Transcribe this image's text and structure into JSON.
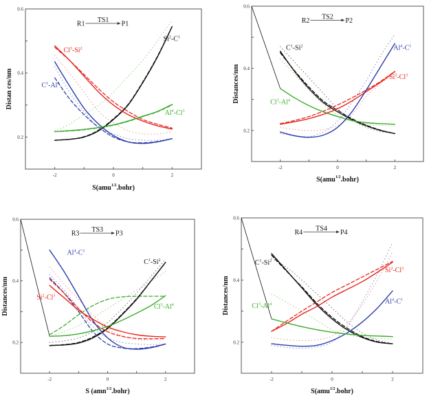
{
  "chart_data": [
    {
      "type": "line",
      "title": "",
      "annotation": {
        "from": "R1",
        "ts": "TS1",
        "to": "P1"
      },
      "xlabel": {
        "main": "S(amu",
        "sup": "1/2",
        "tail": ".bohr)"
      },
      "ylabel": "Distan ces/nm",
      "xlim": [
        -3,
        3
      ],
      "ylim": [
        0.1,
        0.6
      ],
      "xticks": [
        -2,
        0,
        2
      ],
      "yticks": [
        0.2,
        0.4,
        0.6
      ],
      "grid": false,
      "x": [
        -2,
        -1.5,
        -1,
        -0.5,
        0,
        0.5,
        1,
        1.5,
        2
      ],
      "series": [
        {
          "name": "Si2-C1",
          "color": "#111111",
          "style": "solid",
          "values": [
            0.19,
            0.193,
            0.2,
            0.22,
            0.255,
            0.3,
            0.37,
            0.45,
            0.545
          ]
        },
        {
          "name": "Si2-C1 (dashed)",
          "color": "#111111",
          "style": "dashed",
          "values": [
            0.19,
            0.193,
            0.201,
            0.222,
            0.257,
            0.302,
            0.372,
            0.452,
            0.545
          ]
        },
        {
          "name": "Cl3-Si2",
          "color": "#e8231c",
          "style": "solid",
          "values": [
            0.485,
            0.44,
            0.39,
            0.34,
            0.3,
            0.27,
            0.25,
            0.235,
            0.225
          ]
        },
        {
          "name": "Cl3-Si2 (dashed)",
          "color": "#e8231c",
          "style": "dashed",
          "values": [
            0.48,
            0.44,
            0.395,
            0.35,
            0.31,
            0.28,
            0.255,
            0.24,
            0.228
          ]
        },
        {
          "name": "Cl3-Si2 (dotted)",
          "color": "#f08080",
          "style": "dotted",
          "values": [
            0.455,
            0.4,
            0.34,
            0.28,
            0.245,
            0.22,
            0.21,
            0.21,
            0.215
          ]
        },
        {
          "name": "C1-Al4",
          "color": "#2a3ba8",
          "style": "solid",
          "values": [
            0.435,
            0.36,
            0.29,
            0.24,
            0.205,
            0.185,
            0.18,
            0.185,
            0.195
          ]
        },
        {
          "name": "C1-Al4 (dashed)",
          "color": "#2a3ba8",
          "style": "dashed",
          "values": [
            0.385,
            0.32,
            0.27,
            0.23,
            0.2,
            0.185,
            0.182,
            0.186,
            0.195
          ]
        },
        {
          "name": "C1-Al4 (dotted)",
          "color": "#6a78c8",
          "style": "dotted",
          "values": [
            0.42,
            0.34,
            0.28,
            0.23,
            0.21,
            0.195,
            0.19,
            0.19,
            0.195
          ]
        },
        {
          "name": "Al4-Cl3",
          "color": "#3aaa2a",
          "style": "solid",
          "values": [
            0.217,
            0.22,
            0.224,
            0.23,
            0.238,
            0.25,
            0.265,
            0.28,
            0.302
          ]
        },
        {
          "name": "Al4-Cl3 (dashed)",
          "color": "#3aaa2a",
          "style": "dashed",
          "values": [
            0.217,
            0.219,
            0.223,
            0.229,
            0.237,
            0.249,
            0.264,
            0.279,
            0.3
          ]
        },
        {
          "name": "Al4-Cl3 (dotted)",
          "color": "#7acb6a",
          "style": "dotted",
          "values": [
            0.22,
            0.24,
            0.27,
            0.3,
            0.34,
            0.39,
            0.44,
            0.5,
            0.565
          ]
        }
      ],
      "labels": [
        {
          "base1": "Si",
          "sup1": "2",
          "base2": "-C",
          "sup2": "1",
          "color": "#111111",
          "x": 1.7,
          "y": 0.5
        },
        {
          "base1": "Cl",
          "sup1": "3",
          "base2": "-Si",
          "sup2": "2",
          "color": "#e8231c",
          "x": -1.7,
          "y": 0.465
        },
        {
          "base1": "C",
          "sup1": "1",
          "base2": "-Al",
          "sup2": "4",
          "color": "#2a3ba8",
          "x": -2.45,
          "y": 0.355
        },
        {
          "base1": "Al",
          "sup1": "4",
          "base2": "-Cl",
          "sup2": "3",
          "color": "#3aaa2a",
          "x": 1.75,
          "y": 0.27
        }
      ]
    },
    {
      "type": "line",
      "title": "",
      "annotation": {
        "from": "R2",
        "ts": "TS2",
        "to": "P2"
      },
      "xlabel": {
        "main": "S(amu",
        "sup": "1/2",
        "tail": ".bohr)"
      },
      "ylabel": "Distances/nm",
      "xlim": [
        -3,
        3
      ],
      "ylim": [
        0.1,
        0.6
      ],
      "xticks": [
        -2,
        0,
        2
      ],
      "yticks": [
        0.2,
        0.4,
        0.6
      ],
      "grid": false,
      "x": [
        -2,
        -1.5,
        -1,
        -0.5,
        0,
        0.5,
        1,
        1.5,
        2
      ],
      "connector": {
        "color": "#111111",
        "from": [
          -3,
          0.6
        ],
        "to": [
          -2,
          0.335
        ]
      },
      "series": [
        {
          "name": "C1-Si2",
          "color": "#111111",
          "style": "solid",
          "values": [
            0.455,
            0.39,
            0.335,
            0.29,
            0.26,
            0.235,
            0.215,
            0.2,
            0.19
          ]
        },
        {
          "name": "C1-Si2 (dashed)",
          "color": "#111111",
          "style": "dashed",
          "values": [
            0.45,
            0.392,
            0.34,
            0.295,
            0.265,
            0.238,
            0.217,
            0.201,
            0.19
          ]
        },
        {
          "name": "C1-Si2 (dotted)",
          "color": "#555555",
          "style": "dotted",
          "values": [
            0.47,
            0.42,
            0.37,
            0.32,
            0.27,
            0.235,
            0.21,
            0.197,
            0.19
          ]
        },
        {
          "name": "Cl3-Al4",
          "color": "#3aaa2a",
          "style": "solid",
          "values": [
            0.335,
            0.305,
            0.28,
            0.26,
            0.245,
            0.232,
            0.225,
            0.222,
            0.22
          ]
        },
        {
          "name": "Cl3-Al4 (dotted)",
          "color": "#7acb6a",
          "style": "dotted",
          "values": [
            0.43,
            0.38,
            0.33,
            0.285,
            0.25,
            0.23,
            0.22,
            0.216,
            0.215
          ]
        },
        {
          "name": "Si2-Cl3",
          "color": "#e8231c",
          "style": "solid",
          "values": [
            0.22,
            0.228,
            0.238,
            0.252,
            0.27,
            0.295,
            0.325,
            0.355,
            0.39
          ]
        },
        {
          "name": "Si2-Cl3 (dashed)",
          "color": "#e8231c",
          "style": "dashed",
          "values": [
            0.222,
            0.232,
            0.245,
            0.262,
            0.282,
            0.305,
            0.33,
            0.358,
            0.39
          ]
        },
        {
          "name": "Si2-Cl3 (dotted)",
          "color": "#f08080",
          "style": "dotted",
          "values": [
            0.21,
            0.203,
            0.2,
            0.203,
            0.215,
            0.25,
            0.31,
            0.35,
            0.385
          ]
        },
        {
          "name": "Al4-C1",
          "color": "#2a3ba8",
          "style": "solid",
          "values": [
            0.195,
            0.183,
            0.178,
            0.185,
            0.21,
            0.26,
            0.33,
            0.405,
            0.48
          ]
        },
        {
          "name": "Al4-C1 (dotted)",
          "color": "#6a78c8",
          "style": "dotted",
          "values": [
            0.19,
            0.183,
            0.18,
            0.195,
            0.23,
            0.29,
            0.36,
            0.44,
            0.51
          ]
        }
      ],
      "labels": [
        {
          "base1": "C",
          "sup1": "1",
          "base2": "-Si",
          "sup2": "2",
          "color": "#111111",
          "x": -1.8,
          "y": 0.46
        },
        {
          "base1": "Cl",
          "sup1": "3",
          "base2": "-Al",
          "sup2": "4",
          "color": "#3aaa2a",
          "x": -2.35,
          "y": 0.285
        },
        {
          "base1": "Si",
          "sup1": "2",
          "base2": "-Cl",
          "sup2": "3",
          "color": "#e8231c",
          "x": 1.8,
          "y": 0.365
        },
        {
          "base1": "Al",
          "sup1": "4",
          "base2": "-C",
          "sup2": "1",
          "color": "#2a3ba8",
          "x": 1.95,
          "y": 0.46
        }
      ]
    },
    {
      "type": "line",
      "title": "",
      "annotation": {
        "from": "R3",
        "ts": "TS3",
        "to": "P3"
      },
      "xlabel": {
        "main": "S (amn",
        "sup": "1/2",
        "tail": ".bohr)"
      },
      "ylabel": "Distances/nm",
      "xlim": [
        -3,
        3
      ],
      "ylim": [
        0.1,
        0.6
      ],
      "xticks": [
        -2,
        0,
        2
      ],
      "yticks": [
        0.2,
        0.4,
        0.6
      ],
      "grid": false,
      "x": [
        -2,
        -1.5,
        -1,
        -0.5,
        0,
        0.5,
        1,
        1.5,
        2
      ],
      "connector": {
        "color": "#111111",
        "from": [
          -3,
          0.6
        ],
        "to": [
          -2,
          0.22
        ]
      },
      "series": [
        {
          "name": "C1-Si2",
          "color": "#111111",
          "style": "solid",
          "values": [
            0.19,
            0.192,
            0.198,
            0.215,
            0.245,
            0.29,
            0.34,
            0.4,
            0.46
          ]
        },
        {
          "name": "C1-Si2 (dashed)",
          "color": "#111111",
          "style": "dashed",
          "values": [
            0.19,
            0.193,
            0.2,
            0.218,
            0.248,
            0.292,
            0.342,
            0.4,
            0.46
          ]
        },
        {
          "name": "C1-Si2 (dotted)",
          "color": "#555555",
          "style": "dotted",
          "values": [
            0.2,
            0.205,
            0.215,
            0.235,
            0.265,
            0.31,
            0.36,
            0.415,
            0.47
          ]
        },
        {
          "name": "Al4-C1",
          "color": "#2a3ba8",
          "style": "solid",
          "values": [
            0.5,
            0.43,
            0.35,
            0.27,
            0.215,
            0.185,
            0.178,
            0.183,
            0.195
          ]
        },
        {
          "name": "Al4-C1 (dashed)",
          "color": "#2a3ba8",
          "style": "dashed",
          "values": [
            0.41,
            0.36,
            0.3,
            0.235,
            0.195,
            0.182,
            0.18,
            0.185,
            0.195
          ]
        },
        {
          "name": "Al4-C1 (dotted)",
          "color": "#6a78c8",
          "style": "dotted",
          "values": [
            0.42,
            0.37,
            0.31,
            0.25,
            0.215,
            0.2,
            0.195,
            0.193,
            0.195
          ]
        },
        {
          "name": "Si2-Cl3",
          "color": "#e8231c",
          "style": "solid",
          "values": [
            0.385,
            0.345,
            0.305,
            0.275,
            0.25,
            0.235,
            0.225,
            0.22,
            0.218
          ]
        },
        {
          "name": "Si2-Cl3 (dashed)",
          "color": "#e8231c",
          "style": "dashed",
          "values": [
            0.405,
            0.36,
            0.31,
            0.265,
            0.235,
            0.22,
            0.213,
            0.212,
            0.213
          ]
        },
        {
          "name": "Si2-Cl3 (dotted)",
          "color": "#f08080",
          "style": "dotted",
          "values": [
            0.445,
            0.39,
            0.34,
            0.29,
            0.245,
            0.222,
            0.21,
            0.208,
            0.21
          ]
        },
        {
          "name": "Cl3-Al4",
          "color": "#3aaa2a",
          "style": "solid",
          "values": [
            0.22,
            0.222,
            0.228,
            0.238,
            0.252,
            0.272,
            0.295,
            0.32,
            0.352
          ]
        },
        {
          "name": "Cl3-Al4 (dashed)",
          "color": "#3aaa2a",
          "style": "dashed",
          "values": [
            0.225,
            0.255,
            0.29,
            0.32,
            0.34,
            0.348,
            0.35,
            0.35,
            0.35
          ]
        },
        {
          "name": "Cl3-Al4 (dotted)",
          "color": "#7acb6a",
          "style": "dotted",
          "values": [
            0.22,
            0.235,
            0.255,
            0.28,
            0.31,
            0.34,
            0.37,
            0.4,
            0.43
          ]
        }
      ],
      "labels": [
        {
          "base1": "Al",
          "sup1": "4",
          "base2": "-C",
          "sup2": "1",
          "color": "#2a3ba8",
          "x": -1.4,
          "y": 0.485
        },
        {
          "base1": "Si",
          "sup1": "2",
          "base2": "-Cl",
          "sup2": "3",
          "color": "#e8231c",
          "x": -2.45,
          "y": 0.34
        },
        {
          "base1": "C",
          "sup1": "1",
          "base2": "-Si",
          "sup2": "2",
          "color": "#111111",
          "x": 1.25,
          "y": 0.455
        },
        {
          "base1": "Cl",
          "sup1": "3",
          "base2": "-Al",
          "sup2": "4",
          "color": "#3aaa2a",
          "x": 1.6,
          "y": 0.31
        }
      ]
    },
    {
      "type": "line",
      "title": "",
      "annotation": {
        "from": "R4",
        "ts": "TS4",
        "to": "P4"
      },
      "xlabel": {
        "main": "S(amu",
        "sup": "1/2",
        "tail": ".bohr)"
      },
      "ylabel": "Distances/nm",
      "xlim": [
        -3,
        3
      ],
      "ylim": [
        0.1,
        0.6
      ],
      "xticks": [
        -2,
        0,
        2
      ],
      "yticks": [
        0.2,
        0.4,
        0.6
      ],
      "grid": false,
      "x": [
        -2,
        -1.5,
        -1,
        -0.5,
        0,
        0.5,
        1,
        1.5,
        2
      ],
      "connector": {
        "color": "#111111",
        "from": [
          -3,
          0.6
        ],
        "to": [
          -2,
          0.275
        ]
      },
      "series": [
        {
          "name": "C1-Si2",
          "color": "#111111",
          "style": "solid",
          "values": [
            0.485,
            0.43,
            0.375,
            0.32,
            0.275,
            0.24,
            0.215,
            0.2,
            0.195
          ]
        },
        {
          "name": "C1-Si2 (dashed)",
          "color": "#111111",
          "style": "dashed",
          "values": [
            0.48,
            0.428,
            0.378,
            0.325,
            0.28,
            0.245,
            0.218,
            0.202,
            0.195
          ]
        },
        {
          "name": "C1-Si2 (dotted)",
          "color": "#555555",
          "style": "dotted",
          "values": [
            0.47,
            0.44,
            0.4,
            0.355,
            0.31,
            0.265,
            0.23,
            0.207,
            0.195
          ]
        },
        {
          "name": "Si2-Cl3",
          "color": "#e8231c",
          "style": "solid",
          "values": [
            0.235,
            0.26,
            0.29,
            0.315,
            0.345,
            0.37,
            0.395,
            0.425,
            0.457
          ]
        },
        {
          "name": "Si2-Cl3 (dashed)",
          "color": "#e8231c",
          "style": "dashed",
          "values": [
            0.235,
            0.268,
            0.3,
            0.33,
            0.36,
            0.385,
            0.41,
            0.435,
            0.46
          ]
        },
        {
          "name": "Si2-Cl3 (dotted)",
          "color": "#f08080",
          "style": "dotted",
          "values": [
            0.215,
            0.208,
            0.205,
            0.208,
            0.22,
            0.26,
            0.32,
            0.4,
            0.49
          ]
        },
        {
          "name": "Al4-C1",
          "color": "#2a3ba8",
          "style": "solid",
          "values": [
            0.195,
            0.19,
            0.187,
            0.19,
            0.205,
            0.23,
            0.265,
            0.31,
            0.365
          ]
        },
        {
          "name": "Al4-C1 (dotted)",
          "color": "#6a78c8",
          "style": "dotted",
          "values": [
            0.19,
            0.183,
            0.18,
            0.185,
            0.2,
            0.25,
            0.33,
            0.42,
            0.52
          ]
        },
        {
          "name": "Cl3-Al4",
          "color": "#3aaa2a",
          "style": "solid",
          "values": [
            0.275,
            0.262,
            0.25,
            0.24,
            0.232,
            0.226,
            0.222,
            0.22,
            0.218
          ]
        },
        {
          "name": "Cl3-Al4 (dotted)",
          "color": "#7acb6a",
          "style": "dotted",
          "values": [
            0.355,
            0.328,
            0.3,
            0.27,
            0.24,
            0.225,
            0.215,
            0.212,
            0.21
          ]
        }
      ],
      "labels": [
        {
          "base1": "C",
          "sup1": "1",
          "base2": "-Si",
          "sup2": "2",
          "color": "#111111",
          "x": -2.55,
          "y": 0.45
        },
        {
          "base1": "Cl",
          "sup1": "3",
          "base2": "-Al",
          "sup2": "4",
          "color": "#3aaa2a",
          "x": -2.65,
          "y": 0.31
        },
        {
          "base1": "Si",
          "sup1": "2",
          "base2": "-Cl",
          "sup2": "3",
          "color": "#e8231c",
          "x": 1.75,
          "y": 0.425
        },
        {
          "base1": "Al",
          "sup1": "4",
          "base2": "-C",
          "sup2": "1",
          "color": "#2a3ba8",
          "x": 1.75,
          "y": 0.325
        }
      ]
    }
  ]
}
